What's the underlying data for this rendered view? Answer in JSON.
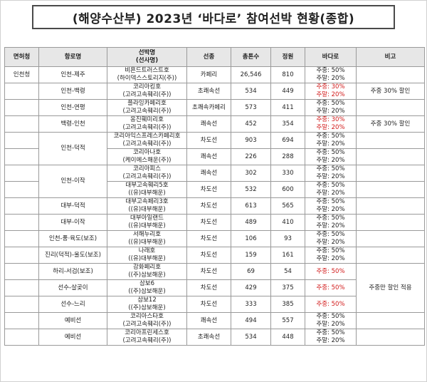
{
  "title": "(해양수산부) 2023년 ‘바다로’ 참여선박 현황(종합)",
  "headers": {
    "region": "면허청",
    "route": "항로명",
    "ship": "선박명\n(선사명)",
    "type": "선종",
    "tonnage": "총톤수",
    "capacity": "정원",
    "badaro": "바다로",
    "note": "비고"
  },
  "region_value": "인천청",
  "rows": [
    {
      "route": "인천-제주",
      "ship": "비욘드트러스트호",
      "company": "(하이덱스스토리지(주))",
      "type": "카페리",
      "tonnage": "26,546",
      "capacity": "810",
      "weekday": "주중: 50%",
      "weekend": "주말: 20%",
      "weekday_red": false,
      "weekend_red": false
    },
    {
      "route": "인천-백령",
      "ship": "코리아킹호",
      "company": "(고려고속훼리(주))",
      "type": "초쾌속선",
      "tonnage": "534",
      "capacity": "449",
      "weekday": "주중: 30%",
      "weekend": "주말: 20%",
      "weekday_red": true,
      "weekend_red": true
    },
    {
      "route": "인천-연평",
      "ship": "플라잉카페리호",
      "company": "(고려고속훼리(주))",
      "type": "초쾌속카페리",
      "tonnage": "573",
      "capacity": "411",
      "weekday": "주중: 50%",
      "weekend": "주말: 20%",
      "weekday_red": false,
      "weekend_red": false
    },
    {
      "route": "백령-인천",
      "ship": "옹진훼미리호",
      "company": "(고려고속훼리(주))",
      "type": "쾌속선",
      "tonnage": "452",
      "capacity": "354",
      "weekday": "주중: 30%",
      "weekend": "주말: 20%",
      "weekday_red": true,
      "weekend_red": true
    },
    {
      "route": "인천-덕적",
      "ship": "코리아익스프레스카페리호",
      "company": "(고려고속훼리(주))",
      "type": "차도선",
      "tonnage": "903",
      "capacity": "694",
      "weekday": "주중: 50%",
      "weekend": "주말: 20%",
      "weekday_red": false,
      "weekend_red": false
    },
    {
      "route": "",
      "ship": "코리아나호",
      "company": "(케이에스해운(주))",
      "type": "쾌속선",
      "tonnage": "226",
      "capacity": "288",
      "weekday": "주중: 50%",
      "weekend": "주말: 20%",
      "weekday_red": false,
      "weekend_red": false
    },
    {
      "route": "인천-이작",
      "ship": "코리아피스",
      "company": "(고려고속훼리(주))",
      "type": "쾌속선",
      "tonnage": "302",
      "capacity": "330",
      "weekday": "주중: 50%",
      "weekend": "주말: 20%",
      "weekday_red": false,
      "weekend_red": false
    },
    {
      "route": "",
      "ship": "대부고속훼리5호",
      "company": "((유)대부해운)",
      "type": "차도선",
      "tonnage": "532",
      "capacity": "600",
      "weekday": "주중: 50%",
      "weekend": "주말: 20%",
      "weekday_red": false,
      "weekend_red": false
    },
    {
      "route": "대부-덕적",
      "ship": "대부고속페리3호",
      "company": "((유)대부해운)",
      "type": "차도선",
      "tonnage": "613",
      "capacity": "565",
      "weekday": "주중: 50%",
      "weekend": "주말: 20%",
      "weekday_red": false,
      "weekend_red": false
    },
    {
      "route": "대부-이작",
      "ship": "대부아일랜드",
      "company": "((유)대부해운)",
      "type": "차도선",
      "tonnage": "489",
      "capacity": "410",
      "weekday": "주중: 50%",
      "weekend": "주말: 20%",
      "weekday_red": false,
      "weekend_red": false
    },
    {
      "route": "인천-풍·육도(보조)",
      "ship": "서해누리호",
      "company": "((유)대부해운)",
      "type": "차도선",
      "tonnage": "106",
      "capacity": "93",
      "weekday": "주중: 50%",
      "weekend": "주말: 20%",
      "weekday_red": false,
      "weekend_red": false
    },
    {
      "route": "진리(덕적)-울도(보조)",
      "ship": "나래호",
      "company": "((유)대부해운)",
      "type": "차도선",
      "tonnage": "159",
      "capacity": "161",
      "weekday": "주중: 50%",
      "weekend": "주말: 20%",
      "weekday_red": false,
      "weekend_red": false
    },
    {
      "route": "하리-서검(보조)",
      "ship": "강화페리호",
      "company": "((주)삼보해운)",
      "type": "차도선",
      "tonnage": "69",
      "capacity": "54",
      "weekday": "주중: 50%",
      "weekend": "",
      "weekday_red": true,
      "weekend_red": false
    },
    {
      "route": "선수-살곶이",
      "ship": "삼보6",
      "company": "((주)삼보해운)",
      "type": "차도선",
      "tonnage": "429",
      "capacity": "375",
      "weekday": "주중: 50%",
      "weekend": "",
      "weekday_red": true,
      "weekend_red": false
    },
    {
      "route": "선수-느리",
      "ship": "삼보12",
      "company": "((주)삼보해운)",
      "type": "차도선",
      "tonnage": "333",
      "capacity": "385",
      "weekday": "주중: 50%",
      "weekend": "",
      "weekday_red": true,
      "weekend_red": false
    },
    {
      "route": "예비선",
      "ship": "코리아스타호",
      "company": "(고려고속훼리(주))",
      "type": "쾌속선",
      "tonnage": "494",
      "capacity": "557",
      "weekday": "주중: 50%",
      "weekend": "주말: 20%",
      "weekday_red": false,
      "weekend_red": false
    },
    {
      "route": "예비선",
      "ship": "코리아프린세스호",
      "company": "(고려고속훼리(주))",
      "type": "초쾌속선",
      "tonnage": "534",
      "capacity": "448",
      "weekday": "주중: 50%",
      "weekend": "주말: 20%",
      "weekday_red": false,
      "weekend_red": false
    }
  ],
  "notes": {
    "weekday30": "주중 30% 할인",
    "weekdayOnly": "주중만 할인 적용"
  }
}
